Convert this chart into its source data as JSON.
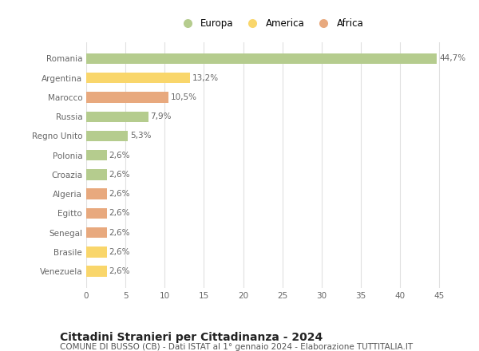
{
  "categories": [
    "Venezuela",
    "Brasile",
    "Senegal",
    "Egitto",
    "Algeria",
    "Croazia",
    "Polonia",
    "Regno Unito",
    "Russia",
    "Marocco",
    "Argentina",
    "Romania"
  ],
  "values": [
    2.6,
    2.6,
    2.6,
    2.6,
    2.6,
    2.6,
    2.6,
    5.3,
    7.9,
    10.5,
    13.2,
    44.7
  ],
  "labels": [
    "2,6%",
    "2,6%",
    "2,6%",
    "2,6%",
    "2,6%",
    "2,6%",
    "2,6%",
    "5,3%",
    "7,9%",
    "10,5%",
    "13,2%",
    "44,7%"
  ],
  "colors": [
    "#f9d66b",
    "#f9d66b",
    "#e8a97e",
    "#e8a97e",
    "#e8a97e",
    "#b5cc8e",
    "#b5cc8e",
    "#b5cc8e",
    "#b5cc8e",
    "#e8a97e",
    "#f9d66b",
    "#b5cc8e"
  ],
  "legend": [
    {
      "label": "Europa",
      "color": "#b5cc8e"
    },
    {
      "label": "America",
      "color": "#f9d66b"
    },
    {
      "label": "Africa",
      "color": "#e8a97e"
    }
  ],
  "xlim": [
    0,
    47
  ],
  "xticks": [
    0,
    5,
    10,
    15,
    20,
    25,
    30,
    35,
    40,
    45
  ],
  "title": "Cittadini Stranieri per Cittadinanza - 2024",
  "subtitle": "COMUNE DI BUSSO (CB) - Dati ISTAT al 1° gennaio 2024 - Elaborazione TUTTITALIA.IT",
  "title_fontsize": 10,
  "subtitle_fontsize": 7.5,
  "label_fontsize": 7.5,
  "tick_fontsize": 7.5,
  "legend_fontsize": 8.5,
  "background_color": "#ffffff",
  "grid_color": "#e0e0e0",
  "bar_height": 0.55
}
